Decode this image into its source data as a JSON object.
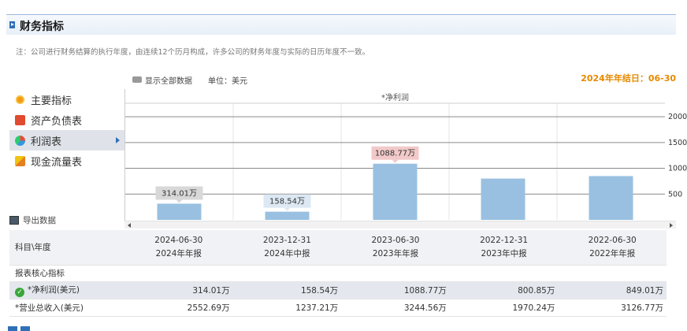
{
  "header": {
    "title": "财务指标"
  },
  "note": "注：公司进行财务结算的执行年度，由连续12个历月构成，许多公司的财务年度与实际的日历年度不一致。",
  "toolbar": {
    "show_all": "显示全部数据",
    "unit": "单位：美元"
  },
  "year_end": "2024年年结日：06-30",
  "sidebar": {
    "items": [
      {
        "label": "主要指标",
        "icon": "sun-icon"
      },
      {
        "label": "资产负债表",
        "icon": "document-icon"
      },
      {
        "label": "利润表",
        "icon": "pie-chart-icon",
        "active": true
      },
      {
        "label": "现金流量表",
        "icon": "coins-icon"
      }
    ],
    "export_label": "导出数据"
  },
  "chart_data": {
    "type": "bar",
    "title": "*净利润",
    "categories": [
      "2024-06-30",
      "2023-12-31",
      "2023-06-30",
      "2022-12-31",
      "2022-06-30"
    ],
    "values": [
      314.01,
      158.54,
      1088.77,
      800.85,
      849.01
    ],
    "data_labels": [
      "314.01万",
      "158.54万",
      "1088.77万",
      "",
      ""
    ],
    "yticks": [
      500,
      1000,
      1500,
      2000
    ],
    "ylim": [
      0,
      2200
    ],
    "bar_color": "#99c0e0",
    "highlight_label_color": "#f2c9c9",
    "label_color": "#d8d8d8"
  },
  "table": {
    "corner": "科目\\年度",
    "columns": [
      {
        "date": "2024-06-30",
        "report": "2024年年报"
      },
      {
        "date": "2023-12-31",
        "report": "2024年中报"
      },
      {
        "date": "2023-06-30",
        "report": "2023年年报"
      },
      {
        "date": "2022-12-31",
        "report": "2023年中报"
      },
      {
        "date": "2022-06-30",
        "report": "2022年年报"
      }
    ],
    "section": "报表核心指标",
    "rows": [
      {
        "label": "*净利润(美元)",
        "values": [
          "314.01万",
          "158.54万",
          "1088.77万",
          "800.85万",
          "849.01万"
        ]
      },
      {
        "label": "*营业总收入(美元)",
        "values": [
          "2552.69万",
          "1237.21万",
          "3244.56万",
          "1970.24万",
          "3126.77万"
        ]
      }
    ]
  }
}
